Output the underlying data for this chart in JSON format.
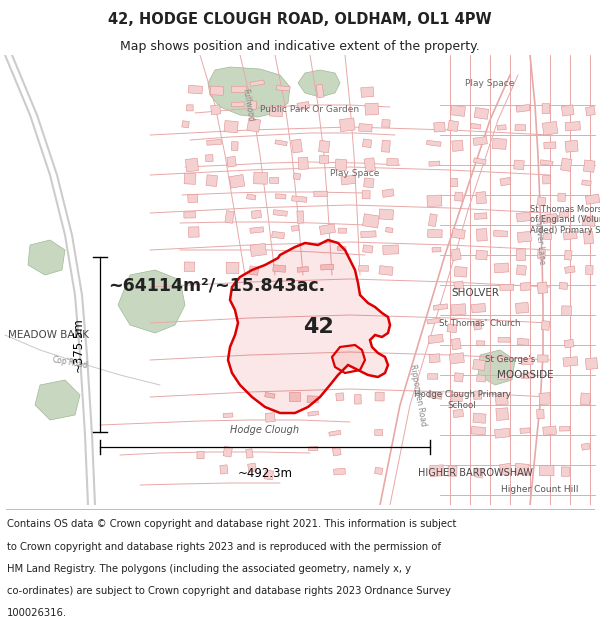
{
  "title_line1": "42, HODGE CLOUGH ROAD, OLDHAM, OL1 4PW",
  "title_line2": "Map shows position and indicative extent of the property.",
  "title_fontsize": 10.5,
  "subtitle_fontsize": 9.0,
  "area_label": "~64114m²/~15.843ac.",
  "area_fontsize": 12.5,
  "plot_number": "42",
  "plot_fontsize": 16,
  "width_label": "~492.3m",
  "height_label": "~375.5m",
  "measurement_fontsize": 8.5,
  "footer_lines": [
    "Contains OS data © Crown copyright and database right 2021. This information is subject",
    "to Crown copyright and database rights 2023 and is reproduced with the permission of",
    "HM Land Registry. The polygons (including the associated geometry, namely x, y",
    "co-ordinates) are subject to Crown copyright and database rights 2023 Ordnance Survey",
    "100026316."
  ],
  "footer_fontsize": 7.2,
  "bg_color": "#ffffff",
  "map_bg": "#ffffff",
  "street_color": "#e8a8a8",
  "building_face": "#f5d0d0",
  "building_edge": "#e09090",
  "green_face": "#c8d8c0",
  "green_edge": "#a0b898",
  "road_outline": "#d0a0a0",
  "property_color": "#dd0000",
  "measurement_color": "#000000",
  "text_dark": "#222222",
  "text_mid": "#555555",
  "text_light": "#888888"
}
